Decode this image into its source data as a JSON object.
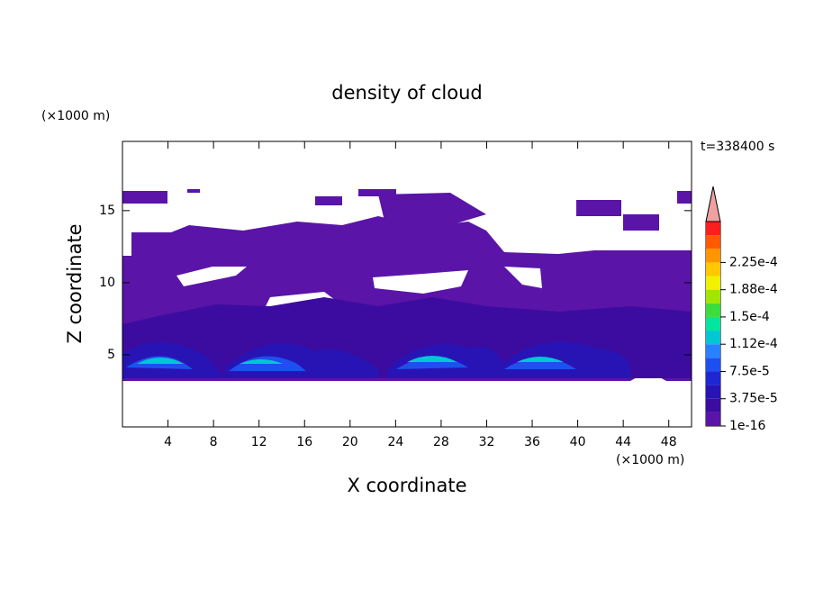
{
  "chart_data": {
    "type": "contour",
    "title": "density of cloud",
    "xlabel": "X coordinate",
    "ylabel": "Z coordinate",
    "xunit": "(×1000 m)",
    "yunit": "(×1000 m)",
    "time": "t=338400 s",
    "xlim": [
      0,
      50
    ],
    "ylim": [
      0,
      19.8
    ],
    "xticks": [
      4,
      8,
      12,
      16,
      20,
      24,
      28,
      32,
      36,
      40,
      44,
      48
    ],
    "yticks": [
      5,
      10,
      15
    ],
    "levels": [
      {
        "value": 1e-16,
        "label": "1e-16"
      },
      {
        "value": 3.75e-05,
        "label": "3.75e-5"
      },
      {
        "value": 7.5e-05,
        "label": "7.5e-5"
      },
      {
        "value": 0.000112,
        "label": "1.12e-4"
      },
      {
        "value": 0.00015,
        "label": "1.5e-4"
      },
      {
        "value": 0.000188,
        "label": "1.88e-4"
      },
      {
        "value": 0.000225,
        "label": "2.25e-4"
      }
    ],
    "colors": [
      "#5a14a8",
      "#3c0ca0",
      "#2814b4",
      "#1e28d2",
      "#1e50f0",
      "#2882ff",
      "#00c8d2",
      "#00e6a0",
      "#3cdc3c",
      "#a0e600",
      "#f0f000",
      "#ffc800",
      "#ff9600",
      "#ff5a00",
      "#ff1e1e",
      "#f0a0a0"
    ]
  }
}
